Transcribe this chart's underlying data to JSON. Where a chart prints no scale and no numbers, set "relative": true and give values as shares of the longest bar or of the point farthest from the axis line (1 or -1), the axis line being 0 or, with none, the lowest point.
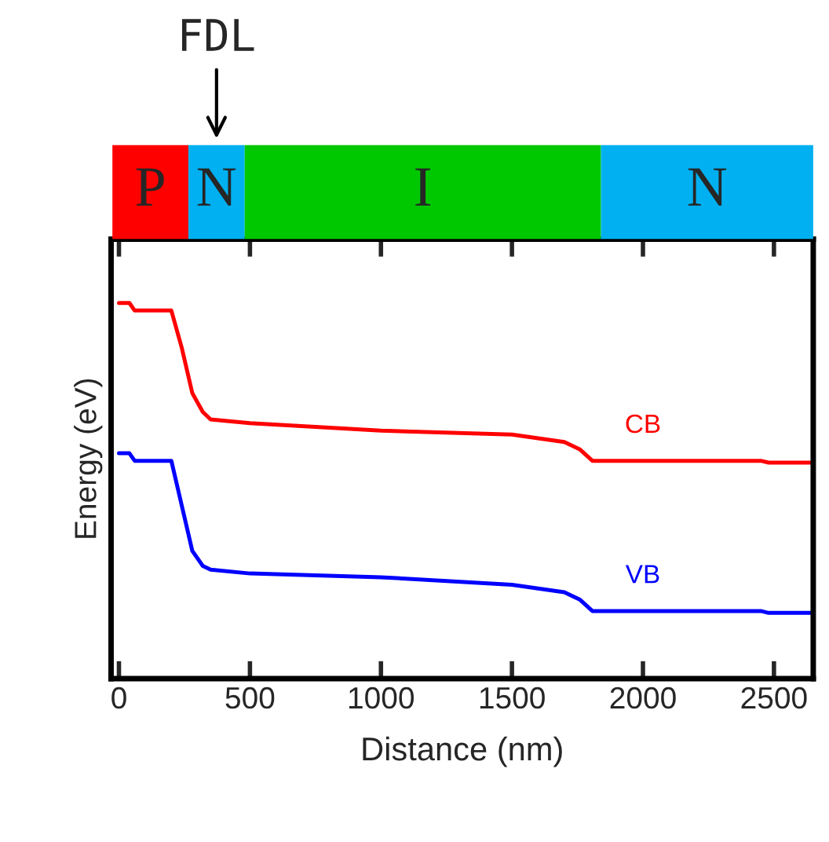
{
  "chart_data": [
    {
      "type": "bar",
      "orientation": "horizontal",
      "categories": [
        null
      ],
      "xlim": [
        -30,
        2650
      ],
      "tick_labels": false,
      "series": [
        {
          "name": "P",
          "color": "#ff0000",
          "base": [
            -25
          ],
          "values": [
            290
          ]
        },
        {
          "name": "N",
          "color": "#00b0f0",
          "base": [
            265
          ],
          "values": [
            215
          ]
        },
        {
          "name": "I",
          "color": "#00c800",
          "base": [
            480
          ],
          "values": [
            1360
          ]
        },
        {
          "name": "N",
          "color": "#00b0f0",
          "base": [
            1840
          ],
          "values": [
            810
          ]
        }
      ],
      "annotations": [
        "FDL"
      ]
    },
    {
      "type": "line",
      "relative": true,
      "xlabel": "Distance (nm)",
      "ylabel": "Energy (eV)",
      "xlim": [
        -30,
        2650
      ],
      "xticks": [
        0,
        500,
        1000,
        1500,
        2000,
        2500
      ],
      "series": [
        {
          "name": "CB",
          "color": "#ff0000",
          "x": [
            0,
            40,
            60,
            200,
            240,
            280,
            320,
            350,
            500,
            1000,
            1500,
            1700,
            1760,
            1807,
            2000,
            2450,
            2480,
            2650
          ],
          "values": [
            1.0,
            1.0,
            0.98,
            0.98,
            0.88,
            0.76,
            0.71,
            0.69,
            0.68,
            0.66,
            0.65,
            0.63,
            0.61,
            0.58,
            0.58,
            0.58,
            0.575,
            0.575
          ]
        },
        {
          "name": "VB",
          "color": "#0000ff",
          "x": [
            0,
            40,
            60,
            200,
            240,
            280,
            320,
            350,
            500,
            1000,
            1500,
            1700,
            1760,
            1807,
            2000,
            2450,
            2480,
            2650
          ],
          "values": [
            0.6,
            0.6,
            0.58,
            0.58,
            0.46,
            0.34,
            0.3,
            0.29,
            0.28,
            0.27,
            0.25,
            0.23,
            0.21,
            0.18,
            0.18,
            0.18,
            0.175,
            0.175
          ]
        }
      ],
      "grid": false,
      "legend": false
    }
  ]
}
